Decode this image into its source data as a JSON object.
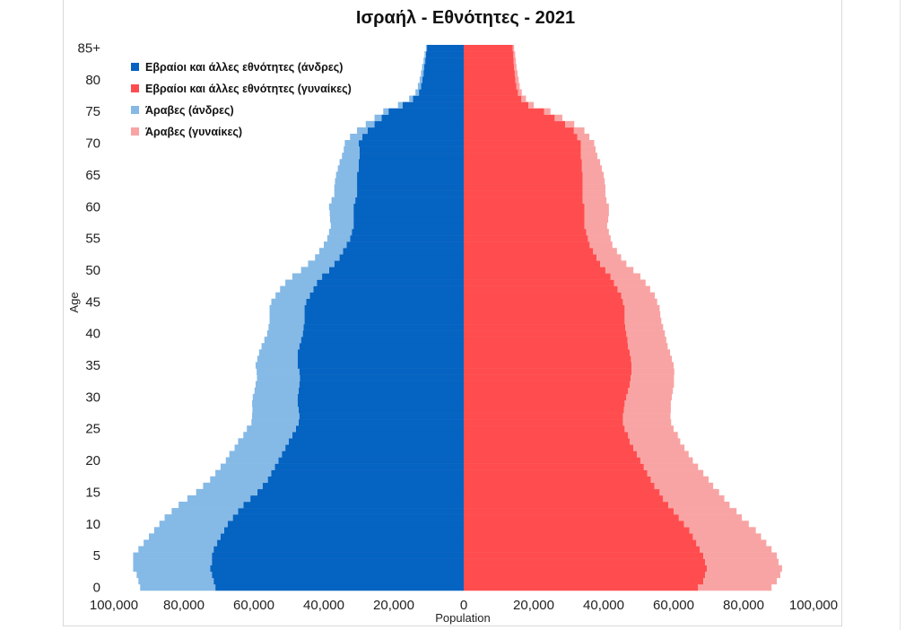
{
  "chart_data": {
    "type": "bar",
    "orientation": "horizontal-pyramid",
    "title": "Ισραήλ - Εθνότητες - 2021",
    "xlabel": "Population",
    "ylabel": "Age",
    "xlim": [
      -100000,
      100000
    ],
    "ylim": [
      0,
      85
    ],
    "x_ticks": [
      -100000,
      -80000,
      -60000,
      -40000,
      -20000,
      0,
      20000,
      40000,
      60000,
      80000,
      100000
    ],
    "x_tick_labels": [
      "100,000",
      "80,000",
      "60,000",
      "40,000",
      "20,000",
      "0",
      "20,000",
      "40,000",
      "60,000",
      "80,000",
      "100,000"
    ],
    "y_ticks": [
      0,
      5,
      10,
      15,
      20,
      25,
      30,
      35,
      40,
      45,
      50,
      55,
      60,
      65,
      70,
      75,
      80,
      85
    ],
    "y_tick_labels": [
      "0",
      "5",
      "10",
      "15",
      "20",
      "25",
      "30",
      "35",
      "40",
      "45",
      "50",
      "55",
      "60",
      "65",
      "70",
      "75",
      "80",
      "85+"
    ],
    "grid": false,
    "legend_position": "top-left",
    "stacked": true,
    "categories": [
      "0",
      "1",
      "2",
      "3",
      "4",
      "5",
      "6",
      "7",
      "8",
      "9",
      "10",
      "11",
      "12",
      "13",
      "14",
      "15",
      "16",
      "17",
      "18",
      "19",
      "20",
      "21",
      "22",
      "23",
      "24",
      "25",
      "26",
      "27",
      "28",
      "29",
      "30",
      "31",
      "32",
      "33",
      "34",
      "35",
      "36",
      "37",
      "38",
      "39",
      "40",
      "41",
      "42",
      "43",
      "44",
      "45",
      "46",
      "47",
      "48",
      "49",
      "50",
      "51",
      "52",
      "53",
      "54",
      "55",
      "56",
      "57",
      "58",
      "59",
      "60",
      "61",
      "62",
      "63",
      "64",
      "65",
      "66",
      "67",
      "68",
      "69",
      "70",
      "71",
      "72",
      "73",
      "74",
      "75",
      "76",
      "77",
      "78",
      "79",
      "80",
      "81",
      "82",
      "83",
      "84",
      "85+"
    ],
    "series": [
      {
        "name": "Εβραίοι και άλλες εθνότητες (άνδρες)",
        "side": "left",
        "color": "#0563c1",
        "values": [
          71000,
          71500,
          72000,
          72500,
          72000,
          72000,
          71500,
          70500,
          69500,
          68500,
          67500,
          66000,
          64500,
          63000,
          61000,
          59000,
          57500,
          56000,
          55000,
          54000,
          53000,
          52000,
          51000,
          50000,
          49000,
          48000,
          47200,
          47000,
          47200,
          47500,
          47500,
          47200,
          47000,
          46800,
          47000,
          47500,
          47500,
          47500,
          47000,
          46500,
          46000,
          45800,
          45500,
          45500,
          45500,
          45000,
          44000,
          43000,
          42000,
          40500,
          38500,
          37000,
          35500,
          34500,
          33500,
          32500,
          32000,
          31500,
          31500,
          31500,
          31500,
          31000,
          30500,
          30500,
          30500,
          30500,
          30000,
          30000,
          29800,
          29800,
          30000,
          29000,
          27500,
          25500,
          23500,
          21500,
          17500,
          14500,
          12800,
          12200,
          11800,
          11500,
          11300,
          11000,
          10800,
          10500
        ]
      },
      {
        "name": "Εβραίοι και άλλες εθνότητες (γυναίκες)",
        "side": "right",
        "color": "#ff4d4f",
        "values": [
          67000,
          68500,
          69000,
          69500,
          69000,
          68500,
          67500,
          66500,
          65500,
          64500,
          63000,
          61500,
          60000,
          58500,
          57000,
          56000,
          54500,
          53500,
          52500,
          51500,
          50500,
          49500,
          48500,
          47500,
          47000,
          46000,
          45500,
          45500,
          45800,
          46000,
          46500,
          47000,
          47500,
          47700,
          48000,
          48000,
          47800,
          47500,
          47000,
          46800,
          46500,
          46200,
          46000,
          46000,
          46000,
          45500,
          45000,
          44000,
          43000,
          42000,
          40500,
          39000,
          38000,
          37000,
          36000,
          35500,
          35000,
          34500,
          34500,
          34500,
          34500,
          34000,
          34000,
          34000,
          34000,
          34000,
          33800,
          33800,
          33500,
          33500,
          33500,
          32500,
          31500,
          29000,
          26000,
          23000,
          18500,
          16500,
          15500,
          15000,
          14800,
          14600,
          14400,
          14300,
          14200,
          14000
        ]
      },
      {
        "name": "Άραβες (άνδρες)",
        "side": "left",
        "color": "#85b9e6",
        "values": [
          21500,
          21500,
          21500,
          22000,
          22500,
          22500,
          21500,
          21000,
          20500,
          20000,
          19500,
          19500,
          19000,
          18500,
          18000,
          17500,
          17000,
          16500,
          16000,
          15500,
          15000,
          15000,
          14500,
          14500,
          14000,
          14000,
          13500,
          13500,
          13200,
          13000,
          12800,
          12600,
          12500,
          12300,
          12200,
          12000,
          11500,
          11000,
          10800,
          10500,
          10200,
          10000,
          10000,
          10000,
          10000,
          10000,
          9800,
          9500,
          9000,
          8500,
          8000,
          7500,
          7000,
          6800,
          6500,
          6500,
          6500,
          6500,
          6700,
          6800,
          7000,
          6800,
          6500,
          6500,
          6300,
          6000,
          6000,
          5500,
          5000,
          4500,
          4000,
          3500,
          3000,
          2500,
          2000,
          1500,
          1300,
          1100,
          1000,
          900,
          800,
          700,
          600,
          500,
          400,
          300
        ]
      },
      {
        "name": "Άραβες (γυναίκες)",
        "side": "right",
        "color": "#f9a4a4",
        "values": [
          21000,
          21000,
          21500,
          21500,
          21000,
          21000,
          20500,
          20000,
          19500,
          19000,
          18500,
          18000,
          18000,
          17500,
          17500,
          17000,
          16800,
          16500,
          16000,
          15500,
          15000,
          14800,
          14600,
          14400,
          14200,
          14000,
          13800,
          13600,
          13400,
          13200,
          13000,
          12800,
          12600,
          12400,
          12200,
          12000,
          11700,
          11500,
          11300,
          11100,
          11000,
          10800,
          10500,
          10200,
          10000,
          9800,
          9600,
          9300,
          9000,
          8500,
          8000,
          7500,
          7000,
          6800,
          6500,
          6500,
          6500,
          6500,
          6800,
          7000,
          7000,
          6800,
          6500,
          6500,
          6300,
          6000,
          5700,
          5200,
          4700,
          4200,
          3800,
          3400,
          3000,
          2600,
          2200,
          1800,
          1500,
          1300,
          1100,
          1000,
          900,
          800,
          700,
          600,
          500,
          400
        ]
      }
    ]
  }
}
